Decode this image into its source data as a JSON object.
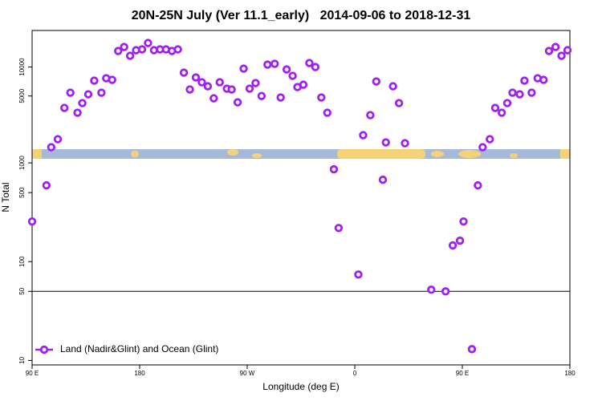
{
  "chart_data": {
    "type": "scatter",
    "title": "20N-25N July (Ver 11.1_early)   2014-09-06 to 2018-12-31",
    "x_label": "Longitude (deg E)",
    "y_label": "N Total",
    "xlim": [
      90,
      540
    ],
    "xticks": [
      {
        "value": 90,
        "label": "90 E"
      },
      180,
      {
        "value": 270,
        "label": "90 W"
      },
      {
        "value": 360,
        "label": "0"
      },
      {
        "value": 450,
        "label": "90 E"
      },
      {
        "value": 540,
        "label": "180"
      }
    ],
    "log_y": true,
    "panels": [
      {
        "ylim": [
          1400,
          24000
        ],
        "yticks": [
          5000,
          10000
        ]
      },
      {
        "ylim": [
          9,
          1100
        ],
        "yticks": [
          10,
          50,
          100,
          500,
          1000
        ]
      }
    ],
    "hline": 50,
    "legend": "lower left",
    "series": [
      {
        "name": "Land (Nadir&Glint) and Ocean (Glint)",
        "color": "#a020f0",
        "x": [
          90,
          102,
          106,
          111.5,
          117,
          122,
          128,
          132,
          137,
          142,
          148,
          152,
          157,
          162,
          167,
          172,
          177,
          182,
          187,
          192,
          197,
          202,
          207,
          212,
          217,
          222,
          227,
          232,
          237,
          242,
          247,
          253,
          257,
          262,
          267,
          272,
          277,
          282,
          287,
          293,
          298,
          303,
          308,
          312,
          317,
          322,
          327,
          332,
          337,
          342.5,
          346.5,
          363,
          367,
          373,
          378,
          383.5,
          386,
          392,
          397,
          402,
          424,
          436,
          442,
          448,
          451,
          458,
          463,
          467,
          473,
          477.5,
          483,
          487.6,
          492,
          498,
          502,
          508,
          513,
          518,
          522.5,
          528,
          533,
          538
        ],
        "values": [
          255,
          592,
          1468,
          1778,
          3758,
          5413,
          3350,
          4217,
          5212,
          7217,
          5413,
          7647,
          7356,
          14678,
          16160,
          13090,
          14960,
          15260,
          17780,
          14960,
          15260,
          15260,
          14678,
          15260,
          8740,
          5843,
          7790,
          6948,
          6310,
          4732,
          6948,
          5957,
          5843,
          4300,
          9624,
          5957,
          6813,
          5000,
          10593,
          10800,
          4822,
          9441,
          8100,
          6190,
          6550,
          11010,
          10000,
          4822,
          3350,
          861,
          219,
          74,
          1957,
          3162,
          7079,
          675,
          1647,
          6310,
          4217,
          1614,
          52,
          50,
          146,
          163,
          255,
          13,
          592,
          1468,
          1778,
          3758,
          3350,
          4217,
          5413,
          5212,
          7217,
          5413,
          7647,
          7356,
          14678,
          16160,
          13090,
          14960
        ]
      }
    ]
  }
}
